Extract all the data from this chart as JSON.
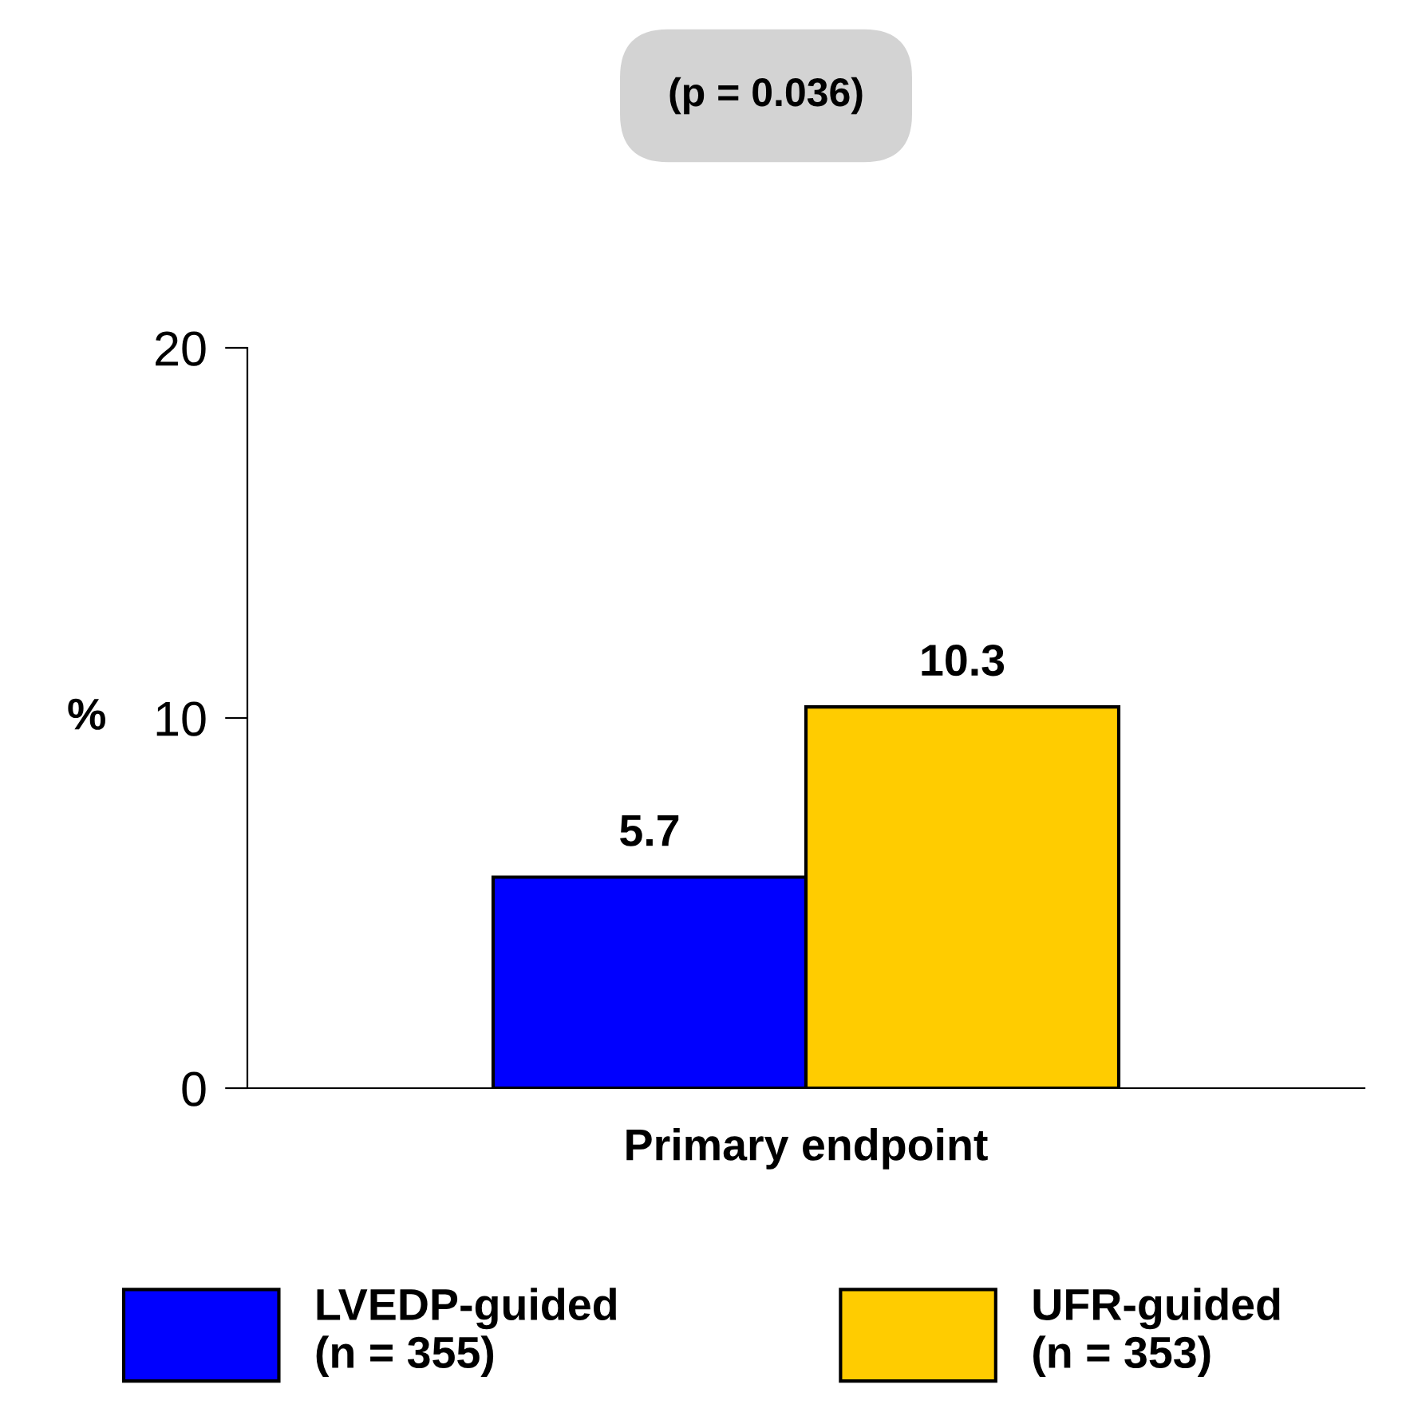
{
  "chart_data": {
    "type": "bar",
    "categories": [
      "Primary endpoint"
    ],
    "series": [
      {
        "name": "LVEDP-guided\n(n = 355)",
        "color": "#0000ff",
        "values": [
          5.7
        ]
      },
      {
        "name": "UFR-guided\n(n = 353)",
        "color": "#ffcc00",
        "values": [
          10.3
        ]
      }
    ],
    "ylabel": "%",
    "ylim": [
      0,
      20
    ],
    "yticks": [
      0,
      10,
      20
    ],
    "data_labels": true,
    "grid": false,
    "legend": "bottom",
    "annotations": [
      "(p = 0.036)"
    ]
  }
}
